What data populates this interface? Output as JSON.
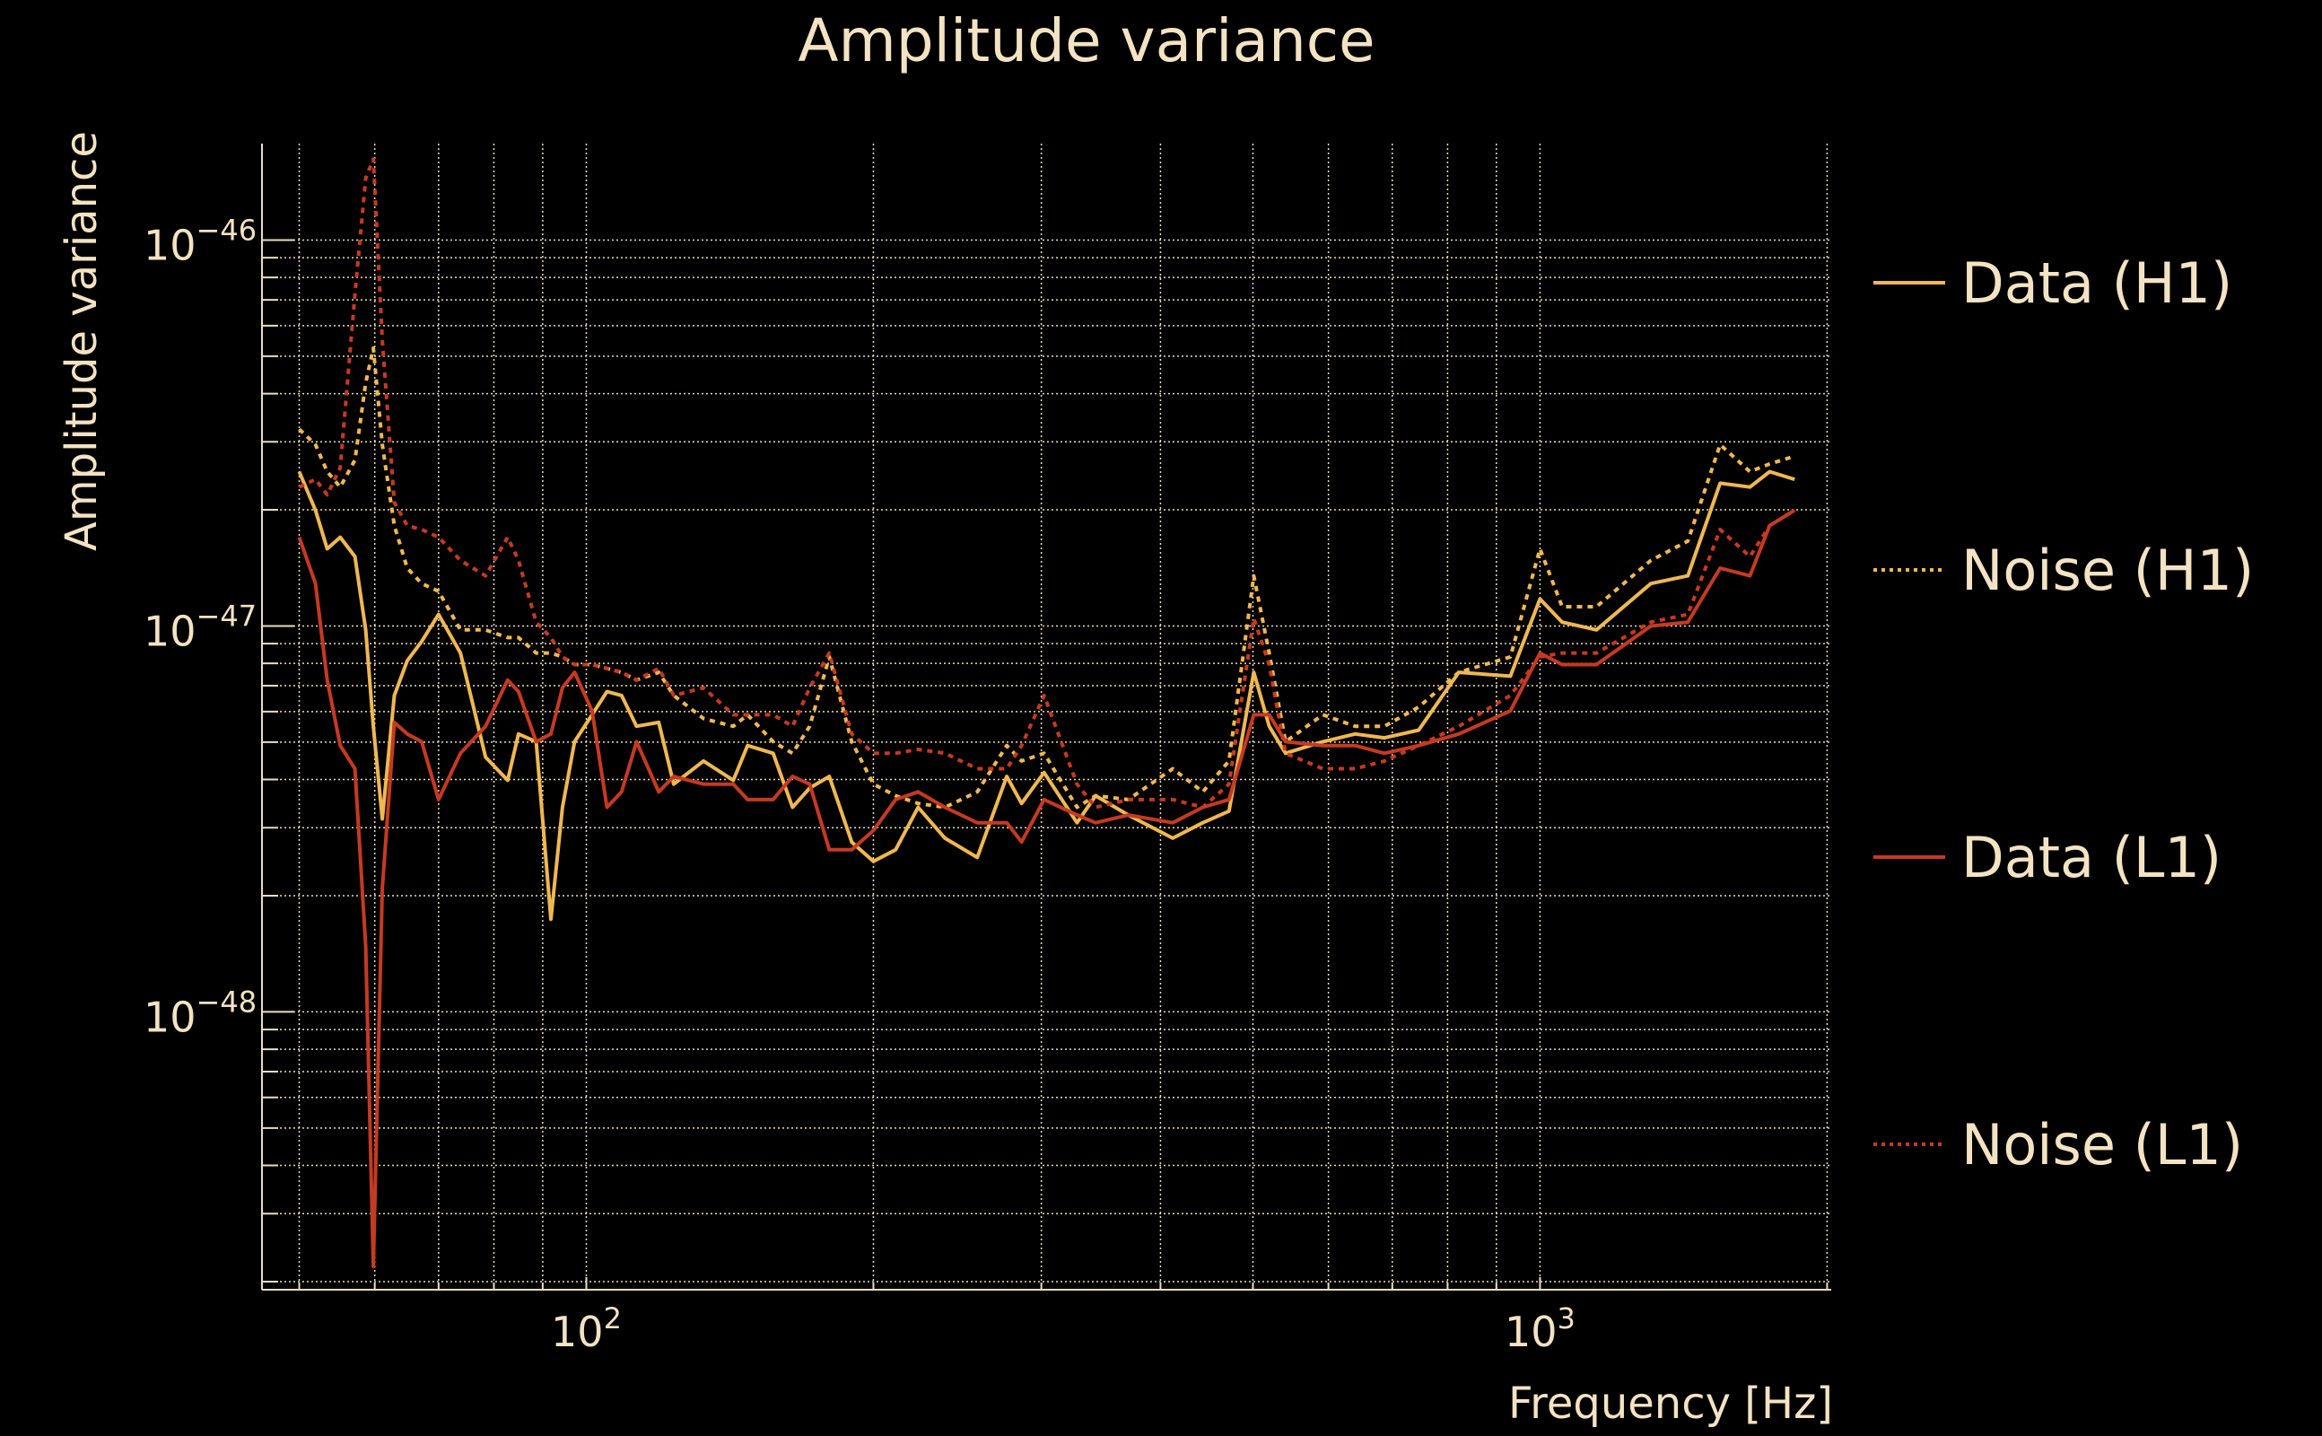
{
  "chart_data": {
    "type": "line",
    "title": "Amplitude variance",
    "xlabel": "Frequency [Hz]",
    "ylabel": "Amplitude variance",
    "xscale": "log",
    "yscale": "log",
    "xlim": [
      45.7,
      2020
    ],
    "ylim_log10": [
      -48.72,
      -45.75
    ],
    "x_tick_labels": [
      {
        "base": "10",
        "exp": "2",
        "value": 100
      },
      {
        "base": "10",
        "exp": "3",
        "value": 1000
      }
    ],
    "y_tick_labels": [
      {
        "base": "10",
        "exp": "−46",
        "value_log10": -46
      },
      {
        "base": "10",
        "exp": "−47",
        "value_log10": -47
      },
      {
        "base": "10",
        "exp": "−48",
        "value_log10": -48
      }
    ],
    "grid": true,
    "legend_position": "right",
    "x": [
      50,
      52,
      53.5,
      55.2,
      57.2,
      58.7,
      59.8,
      61.1,
      62.9,
      64.9,
      67.2,
      70,
      73.8,
      78.4,
      82.7,
      84.9,
      88.6,
      91.8,
      94.4,
      97.2,
      101.4,
      105.1,
      108.9,
      112.9,
      119.1,
      123.5,
      132.7,
      142.6,
      147.6,
      157,
      164.5,
      171.5,
      179.8,
      189.8,
      200,
      211,
      222.8,
      237.7,
      257,
      276,
      286,
      302,
      327,
      342,
      370,
      412,
      443,
      472,
      501,
      520,
      541,
      592,
      640,
      687,
      746,
      822,
      931,
      1000,
      1055,
      1146,
      1307,
      1429,
      1545,
      1660,
      1741,
      1849
    ],
    "series": [
      {
        "name": "Data (H1)",
        "color": "#efb850",
        "style": "solid",
        "log10_values": [
          -46.6,
          -46.7,
          -46.8,
          -46.77,
          -46.82,
          -47.01,
          -47.26,
          -47.5,
          -47.18,
          -47.09,
          -47.04,
          -46.97,
          -47.07,
          -47.34,
          -47.4,
          -47.28,
          -47.3,
          -47.76,
          -47.47,
          -47.3,
          -47.23,
          -47.17,
          -47.18,
          -47.26,
          -47.25,
          -47.41,
          -47.35,
          -47.4,
          -47.31,
          -47.33,
          -47.47,
          -47.42,
          -47.39,
          -47.56,
          -47.61,
          -47.58,
          -47.47,
          -47.55,
          -47.6,
          -47.39,
          -47.46,
          -47.38,
          -47.51,
          -47.44,
          -47.49,
          -47.55,
          -47.51,
          -47.48,
          -47.12,
          -47.26,
          -47.33,
          -47.3,
          -47.28,
          -47.29,
          -47.27,
          -47.12,
          -47.13,
          -46.93,
          -46.99,
          -47.01,
          -46.89,
          -46.87,
          -46.63,
          -46.64,
          -46.6,
          -46.62
        ]
      },
      {
        "name": "Noise (H1)",
        "color": "#efb850",
        "style": "dotted",
        "log10_values": [
          -46.49,
          -46.53,
          -46.6,
          -46.64,
          -46.57,
          -46.37,
          -46.28,
          -46.53,
          -46.74,
          -46.85,
          -46.89,
          -46.91,
          -47.01,
          -47.01,
          -47.03,
          -47.03,
          -47.07,
          -47.07,
          -47.08,
          -47.1,
          -47.1,
          -47.11,
          -47.12,
          -47.14,
          -47.12,
          -47.18,
          -47.24,
          -47.26,
          -47.23,
          -47.3,
          -47.33,
          -47.26,
          -47.08,
          -47.3,
          -47.41,
          -47.44,
          -47.46,
          -47.47,
          -47.43,
          -47.31,
          -47.35,
          -47.33,
          -47.47,
          -47.44,
          -47.45,
          -47.37,
          -47.43,
          -47.35,
          -46.87,
          -47.07,
          -47.3,
          -47.23,
          -47.26,
          -47.26,
          -47.21,
          -47.12,
          -47.08,
          -46.8,
          -46.95,
          -46.95,
          -46.83,
          -46.78,
          -46.53,
          -46.6,
          -46.58,
          -46.56
        ]
      },
      {
        "name": "Data (L1)",
        "color": "#c53a22",
        "style": "solid",
        "log10_values": [
          -46.77,
          -46.89,
          -47.14,
          -47.31,
          -47.37,
          -47.83,
          -48.66,
          -47.68,
          -47.25,
          -47.28,
          -47.3,
          -47.45,
          -47.33,
          -47.26,
          -47.14,
          -47.17,
          -47.3,
          -47.28,
          -47.16,
          -47.12,
          -47.22,
          -47.47,
          -47.43,
          -47.3,
          -47.43,
          -47.39,
          -47.41,
          -47.41,
          -47.45,
          -47.45,
          -47.39,
          -47.41,
          -47.58,
          -47.58,
          -47.53,
          -47.45,
          -47.43,
          -47.47,
          -47.51,
          -47.51,
          -47.56,
          -47.45,
          -47.49,
          -47.51,
          -47.49,
          -47.51,
          -47.47,
          -47.45,
          -47.23,
          -47.23,
          -47.3,
          -47.31,
          -47.31,
          -47.33,
          -47.31,
          -47.28,
          -47.22,
          -47.07,
          -47.1,
          -47.1,
          -47.0,
          -46.99,
          -46.85,
          -46.87,
          -46.74,
          -46.7
        ]
      },
      {
        "name": "Noise (L1)",
        "color": "#c53a22",
        "style": "dotted",
        "log10_values": [
          -46.64,
          -46.62,
          -46.66,
          -46.59,
          -46.14,
          -45.84,
          -45.79,
          -46.26,
          -46.68,
          -46.74,
          -46.75,
          -46.77,
          -46.83,
          -46.87,
          -46.77,
          -46.83,
          -46.99,
          -47.03,
          -47.08,
          -47.1,
          -47.1,
          -47.11,
          -47.12,
          -47.14,
          -47.11,
          -47.18,
          -47.16,
          -47.23,
          -47.23,
          -47.23,
          -47.26,
          -47.16,
          -47.07,
          -47.28,
          -47.33,
          -47.33,
          -47.32,
          -47.33,
          -47.37,
          -47.37,
          -47.31,
          -47.18,
          -47.41,
          -47.47,
          -47.45,
          -47.45,
          -47.47,
          -47.41,
          -46.98,
          -47.1,
          -47.33,
          -47.37,
          -47.37,
          -47.35,
          -47.31,
          -47.26,
          -47.18,
          -47.08,
          -47.07,
          -47.07,
          -46.99,
          -46.97,
          -46.75,
          -46.82,
          -46.74,
          -46.7
        ]
      }
    ]
  }
}
